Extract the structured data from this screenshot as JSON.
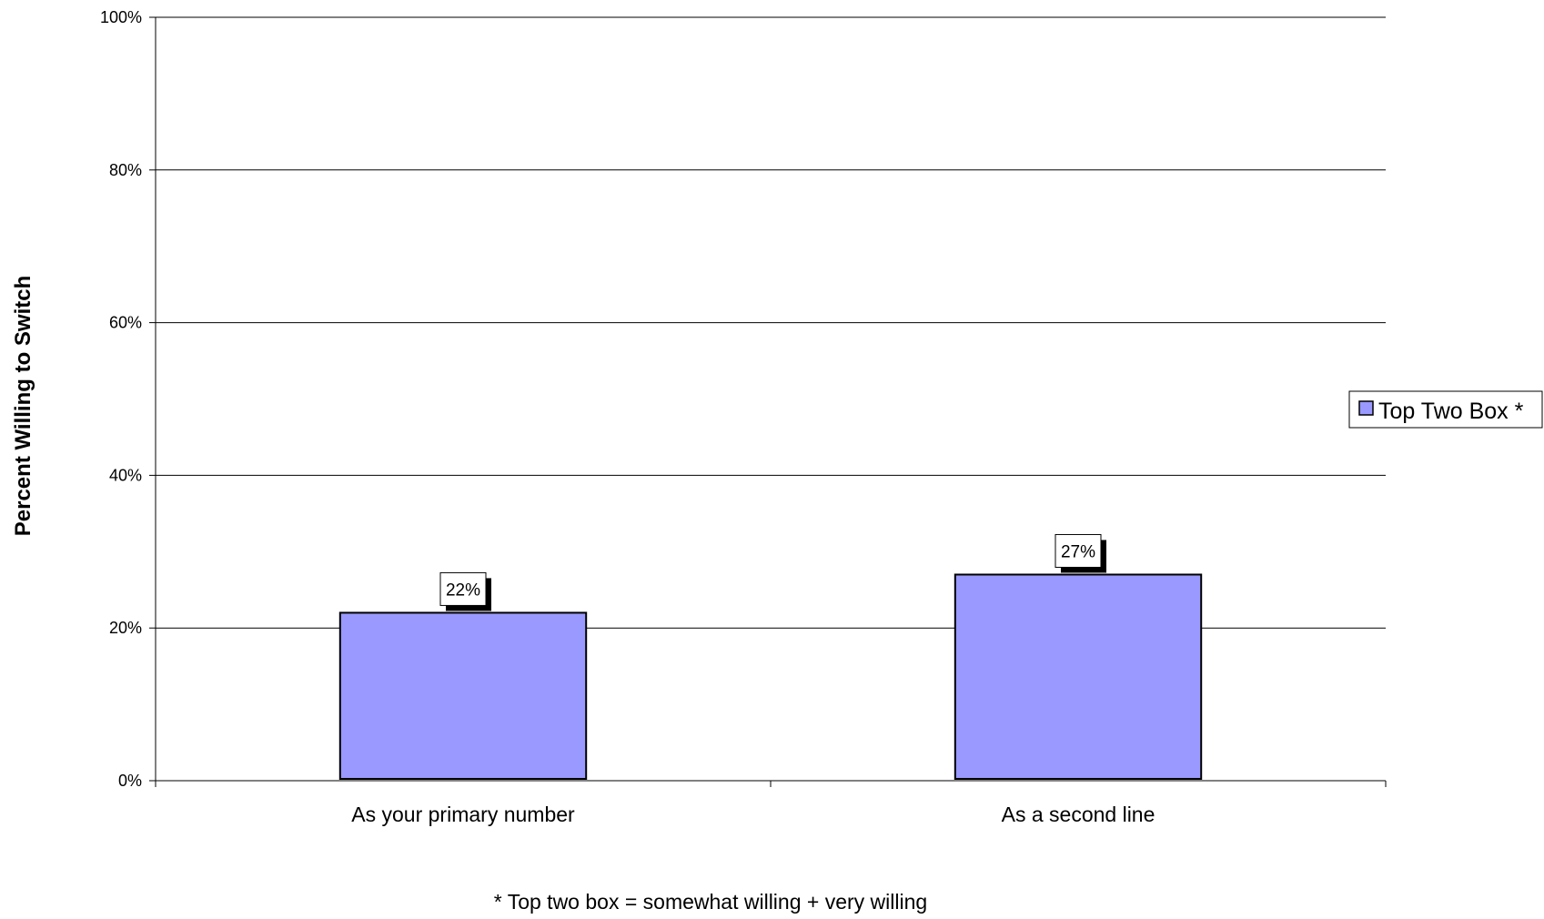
{
  "chart_data": {
    "type": "bar",
    "categories": [
      "As your primary number",
      "As a second line"
    ],
    "series": [
      {
        "name": "Top Two Box *",
        "values": [
          22,
          27
        ],
        "color": "#9999ff"
      }
    ],
    "data_labels": [
      "22%",
      "27%"
    ],
    "ylabel": "Percent Willing to Switch",
    "xlabel": "",
    "ylim": [
      0,
      100
    ],
    "yticks": [
      0,
      20,
      40,
      60,
      80,
      100
    ],
    "ytick_labels": [
      "0%",
      "20%",
      "40%",
      "60%",
      "80%",
      "100%"
    ],
    "grid": true,
    "legend_position": "right",
    "footnote": "* Top two box = somewhat willing + very willing"
  }
}
